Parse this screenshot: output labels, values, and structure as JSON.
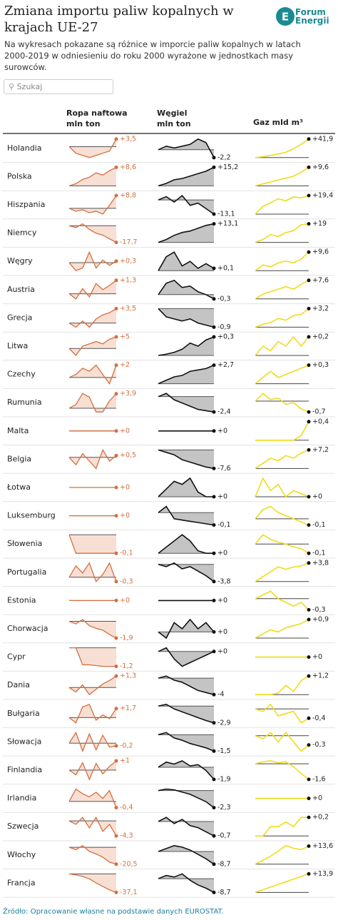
{
  "header": {
    "title": "Zmiana importu paliw kopalnych w krajach UE-27",
    "subtitle": "Na wykresach pokazane są różnice w imporcie paliw kopalnych w latach 2000-2019 w odniesieniu do roku 2000 wyrażone w jednostkach masy surowców.",
    "logo": [
      "Forum",
      "Energii"
    ],
    "search": "Szukaj"
  },
  "table": {
    "columns": [
      [
        "Ropa naftowa",
        "mln ton"
      ],
      [
        "Węgiel",
        "mln ton"
      ],
      [
        "Gaz mld m³"
      ]
    ],
    "rows": [
      {
        "country": "Holandia",
        "oil": {
          "values": [
            0,
            -3,
            -4,
            -5,
            -4,
            -3,
            -2,
            3.5
          ],
          "label": "+3,5"
        },
        "coal": {
          "values": [
            0,
            1,
            0.5,
            1,
            1.5,
            3,
            2,
            -2.2
          ],
          "label": "-2,2"
        },
        "gas": {
          "values": [
            0,
            2,
            5,
            8,
            12,
            20,
            30,
            41.9
          ],
          "label": "+41,9"
        }
      },
      {
        "country": "Polska",
        "oil": {
          "values": [
            0,
            1,
            3,
            4,
            6,
            5,
            7,
            8.6
          ],
          "label": "+8,6"
        },
        "coal": {
          "values": [
            0,
            2,
            5,
            6,
            8,
            10,
            12,
            15.2
          ],
          "label": "+15,2"
        },
        "gas": {
          "values": [
            0,
            1,
            2,
            3,
            4,
            5,
            7,
            9.6
          ],
          "label": "+9,6"
        }
      },
      {
        "country": "Hiszpania",
        "oil": {
          "values": [
            0,
            -2,
            -1,
            -3,
            -2,
            -4,
            2,
            8.8
          ],
          "label": "+8,8"
        },
        "coal": {
          "values": [
            0,
            3,
            -2,
            4,
            -5,
            -3,
            -8,
            -13.1
          ],
          "label": "-13,1"
        },
        "gas": {
          "values": [
            0,
            8,
            12,
            16,
            14,
            18,
            17,
            19.4
          ],
          "label": "+19,4"
        }
      },
      {
        "country": "Niemcy",
        "oil": {
          "values": [
            0,
            -2,
            2,
            -4,
            -8,
            -10,
            -14,
            -17.7
          ],
          "label": "-17,7"
        },
        "coal": {
          "values": [
            0,
            2,
            5,
            7,
            8,
            10,
            12,
            13.1
          ],
          "label": "+13,1"
        },
        "gas": {
          "values": [
            0,
            3,
            8,
            6,
            10,
            12,
            18,
            19
          ],
          "label": "+19"
        }
      },
      {
        "country": "Węgry",
        "oil": {
          "values": [
            0,
            -1.5,
            -1,
            2,
            -1,
            0.5,
            -0.5,
            0.3
          ],
          "label": "+0,3"
        },
        "coal": {
          "values": [
            0,
            0.6,
            0.8,
            0.2,
            0.4,
            0.1,
            0.3,
            0.1
          ],
          "label": "+0,1"
        },
        "gas": {
          "values": [
            0,
            3,
            2,
            4,
            5,
            4,
            6,
            9.6
          ],
          "label": "+9,6"
        }
      },
      {
        "country": "Austria",
        "oil": {
          "values": [
            0,
            -0.5,
            0.5,
            -0.3,
            1,
            0.4,
            0.8,
            1.3
          ],
          "label": "+1,3"
        },
        "coal": {
          "values": [
            0,
            0.8,
            1,
            0.5,
            0.6,
            0.2,
            0,
            -0.3
          ],
          "label": "-0,3"
        },
        "gas": {
          "values": [
            0,
            2,
            3,
            4,
            5,
            4,
            6,
            7.6
          ],
          "label": "+7,6"
        }
      },
      {
        "country": "Grecja",
        "oil": {
          "values": [
            0,
            -1,
            0.5,
            -1,
            1,
            2,
            2.5,
            3.5
          ],
          "label": "+3,5"
        },
        "coal": {
          "values": [
            0,
            -0.4,
            -0.5,
            -0.6,
            -0.5,
            -0.7,
            -0.8,
            -0.9
          ],
          "label": "-0,9"
        },
        "gas": {
          "values": [
            0,
            0.5,
            0.8,
            1.5,
            1.2,
            2,
            2.2,
            3.2
          ],
          "label": "+3,2"
        }
      },
      {
        "country": "Litwa",
        "oil": {
          "values": [
            0,
            -3,
            1,
            2,
            3,
            2,
            4,
            5
          ],
          "label": "+5"
        },
        "coal": {
          "values": [
            0,
            0.02,
            0.05,
            0.1,
            0.2,
            0.15,
            0.25,
            0.3
          ],
          "label": "+0,3"
        },
        "gas": {
          "values": [
            0,
            0.1,
            0.05,
            0.15,
            0.1,
            0.2,
            0.1,
            0.2
          ],
          "label": "+0,2"
        }
      },
      {
        "country": "Czechy",
        "oil": {
          "values": [
            0,
            0.5,
            1.5,
            1,
            2,
            0.5,
            -1,
            2
          ],
          "label": "+2"
        },
        "coal": {
          "values": [
            0,
            0.5,
            1,
            1.2,
            1.8,
            2,
            2.2,
            2.7
          ],
          "label": "+2,7"
        },
        "gas": {
          "values": [
            0,
            0.1,
            0.2,
            0.1,
            0.15,
            0.2,
            0.25,
            0.3
          ],
          "label": "+0,3"
        }
      },
      {
        "country": "Rumunia",
        "oil": {
          "values": [
            0,
            1,
            4,
            3,
            -1,
            -1,
            2,
            3.9
          ],
          "label": "+3,9"
        },
        "coal": {
          "values": [
            0,
            0.5,
            -0.5,
            -1,
            -1.5,
            -2,
            -2.2,
            -2.4
          ],
          "label": "-2,4"
        },
        "gas": {
          "values": [
            0,
            0.5,
            0.1,
            0.2,
            -0.2,
            -0.1,
            -0.5,
            -0.7
          ],
          "label": "-0,7"
        }
      },
      {
        "country": "Malta",
        "oil": {
          "values": [
            0,
            0,
            0,
            0,
            0,
            0,
            0,
            0
          ],
          "label": "+0"
        },
        "coal": {
          "values": [
            0,
            0,
            0,
            0,
            0,
            0,
            0,
            0
          ],
          "label": "+0"
        },
        "gas": {
          "values": [
            0,
            0,
            0,
            0,
            0,
            0,
            0.1,
            0.4
          ],
          "label": "+0,4"
        }
      },
      {
        "country": "Belgia",
        "oil": {
          "values": [
            0,
            -2,
            1,
            -1,
            -3,
            2,
            -1,
            0.5
          ],
          "label": "+0,5"
        },
        "coal": {
          "values": [
            0,
            -1,
            -2,
            -4,
            -5,
            -6,
            -7,
            -7.6
          ],
          "label": "-7,6"
        },
        "gas": {
          "values": [
            0,
            2,
            4,
            3,
            5,
            4,
            6,
            7.2
          ],
          "label": "+7,2"
        }
      },
      {
        "country": "Łotwa",
        "oil": {
          "values": [
            0,
            0,
            0,
            0,
            0,
            0,
            0,
            0
          ],
          "label": "+0"
        },
        "coal": {
          "values": [
            0,
            0.05,
            0.1,
            0.08,
            0.12,
            0.03,
            0,
            0
          ],
          "label": "+0"
        },
        "gas": {
          "values": [
            0,
            0.3,
            0.1,
            0.2,
            0,
            0.1,
            0.05,
            0
          ],
          "label": "+0"
        }
      },
      {
        "country": "Luksemburg",
        "oil": {
          "values": [
            0,
            0,
            0,
            0,
            0,
            0,
            0,
            0
          ],
          "label": "+0"
        },
        "coal": {
          "values": [
            0,
            0.05,
            -0.05,
            -0.06,
            -0.07,
            -0.08,
            -0.09,
            -0.1
          ],
          "label": "-0,1"
        },
        "gas": {
          "values": [
            0,
            0.15,
            0.2,
            0.1,
            0.05,
            0,
            -0.05,
            -0.1
          ],
          "label": "-0,1"
        }
      },
      {
        "country": "Słowenia",
        "oil": {
          "values": [
            0,
            -0.1,
            -0.1,
            -0.1,
            -0.1,
            -0.1,
            -0.1,
            -0.1
          ],
          "label": "-0,1"
        },
        "coal": {
          "values": [
            0,
            0.05,
            0.1,
            0.15,
            0.1,
            0.02,
            0,
            0
          ],
          "label": "+0"
        },
        "gas": {
          "values": [
            0,
            0.1,
            0.05,
            0.02,
            0,
            -0.03,
            -0.05,
            -0.1
          ],
          "label": "-0,1"
        }
      },
      {
        "country": "Portugalia",
        "oil": {
          "values": [
            0,
            0.8,
            0.3,
            1,
            -0.3,
            0.2,
            1,
            -0.3
          ],
          "label": "-0,3"
        },
        "coal": {
          "values": [
            0,
            -0.5,
            0.3,
            -1,
            -0.5,
            -1.5,
            -2.5,
            -3.8
          ],
          "label": "-3,8"
        },
        "gas": {
          "values": [
            0,
            1,
            2,
            3,
            2.5,
            3,
            3.2,
            3.8
          ],
          "label": "+3,8"
        }
      },
      {
        "country": "Estonia",
        "oil": {
          "values": [
            0,
            0,
            0,
            0,
            0,
            0,
            0,
            0
          ],
          "label": "+0"
        },
        "coal": {
          "values": [
            0,
            0,
            0,
            0,
            0,
            0,
            0,
            0
          ],
          "label": "+0"
        },
        "gas": {
          "values": [
            0,
            0.1,
            0.2,
            0,
            -0.1,
            -0.2,
            -0.1,
            -0.3
          ],
          "label": "-0,3"
        }
      },
      {
        "country": "Chorwacja",
        "oil": {
          "values": [
            0,
            -0.3,
            0.2,
            -0.5,
            -0.8,
            -1,
            -1.5,
            -1.9
          ],
          "label": "-1,9"
        },
        "coal": {
          "values": [
            0,
            -0.2,
            0.3,
            0.1,
            0.4,
            0.1,
            0.3,
            0
          ],
          "label": "+0"
        },
        "gas": {
          "values": [
            0,
            0.2,
            0.4,
            0.3,
            0.5,
            0.6,
            0.7,
            0.9
          ],
          "label": "+0,9"
        }
      },
      {
        "country": "Cypr",
        "oil": {
          "values": [
            0,
            0,
            -1.1,
            -1.1,
            -1.15,
            -1.2,
            -1.2,
            -1.2
          ],
          "label": "-1,2"
        },
        "coal": {
          "values": [
            0,
            0.1,
            -0.2,
            -0.4,
            -0.3,
            -0.2,
            -0.1,
            0
          ],
          "label": "+0"
        },
        "gas": {
          "values": [
            0,
            0,
            0,
            0,
            0,
            0,
            0,
            0
          ],
          "label": "+0"
        }
      },
      {
        "country": "Dania",
        "oil": {
          "values": [
            0,
            -0.5,
            0.3,
            -0.8,
            -0.2,
            0.4,
            0.8,
            1.3
          ],
          "label": "+1,3"
        },
        "coal": {
          "values": [
            0,
            0.5,
            -0.5,
            -1,
            -2,
            -3,
            -3.5,
            -4
          ],
          "label": "-4"
        },
        "gas": {
          "values": [
            0,
            0,
            0,
            0.1,
            0.6,
            0.2,
            0.9,
            1.2
          ],
          "label": "+1,2"
        }
      },
      {
        "country": "Bułgaria",
        "oil": {
          "values": [
            0,
            -1,
            2,
            2.5,
            -0.5,
            0.5,
            -0.2,
            1.7
          ],
          "label": "+1,7"
        },
        "coal": {
          "values": [
            0,
            0.3,
            -0.5,
            -1,
            -1.5,
            -2,
            -2.5,
            -2.9
          ],
          "label": "-2,9"
        },
        "gas": {
          "values": [
            0,
            -0.1,
            0.2,
            -0.3,
            -0.2,
            -0.1,
            -0.6,
            -0.4
          ],
          "label": "-0,4"
        }
      },
      {
        "country": "Słowacja",
        "oil": {
          "values": [
            0,
            0.8,
            -0.6,
            0.7,
            -0.5,
            0.6,
            -0.3,
            -0.2
          ],
          "label": "-0,2"
        },
        "coal": {
          "values": [
            0,
            0.2,
            -0.3,
            -0.5,
            -0.8,
            -1,
            -1.2,
            -1.5
          ],
          "label": "-1,5"
        },
        "gas": {
          "values": [
            0,
            -0.1,
            0.1,
            -0.2,
            0.1,
            -0.2,
            -0.5,
            -0.3
          ],
          "label": "-0,3"
        }
      },
      {
        "country": "Finlandia",
        "oil": {
          "values": [
            0,
            -0.5,
            0.8,
            -1,
            0.7,
            -0.4,
            0.4,
            1
          ],
          "label": "+1"
        },
        "coal": {
          "values": [
            0,
            0.8,
            0.5,
            1,
            0.2,
            0.4,
            -0.5,
            -1.9
          ],
          "label": "-1,9"
        },
        "gas": {
          "values": [
            0,
            0.2,
            0.3,
            0.1,
            0.2,
            -0.3,
            -1,
            -1.6
          ],
          "label": "-1,6"
        }
      },
      {
        "country": "Irlandia",
        "oil": {
          "values": [
            0,
            0.8,
            0.5,
            0.3,
            0.6,
            0.2,
            0.7,
            -0.4
          ],
          "label": "-0,4"
        },
        "coal": {
          "values": [
            0,
            0.2,
            0.1,
            -0.2,
            -0.5,
            -1,
            -1.5,
            -2.3
          ],
          "label": "-2,3"
        },
        "gas": {
          "values": [
            0,
            0,
            0,
            0,
            0,
            0,
            0,
            0
          ],
          "label": "+0"
        }
      },
      {
        "country": "Szwecja",
        "oil": {
          "values": [
            0,
            -1,
            1,
            -2,
            1,
            -3,
            -1,
            -4.3
          ],
          "label": "-4,3"
        },
        "coal": {
          "values": [
            0,
            0.2,
            -0.1,
            0.1,
            -0.2,
            -0.3,
            -0.5,
            -0.7
          ],
          "label": "-0,7"
        },
        "gas": {
          "values": [
            0,
            0,
            0.1,
            0.1,
            0.15,
            0.1,
            0.2,
            0.2
          ],
          "label": "+0,2"
        }
      },
      {
        "country": "Włochy",
        "oil": {
          "values": [
            0,
            -3,
            2,
            -5,
            -8,
            -12,
            -18,
            -20.5
          ],
          "label": "-20,5"
        },
        "coal": {
          "values": [
            0,
            2,
            4,
            3,
            1,
            -2,
            -5,
            -8.7
          ],
          "label": "-8,7"
        },
        "gas": {
          "values": [
            0,
            3,
            6,
            10,
            14,
            12,
            11,
            13.6
          ],
          "label": "+13,6"
        }
      },
      {
        "country": "Francja",
        "oil": {
          "values": [
            0,
            -2,
            -5,
            -10,
            -18,
            -25,
            -32,
            -37.1
          ],
          "label": "-37,1"
        },
        "coal": {
          "values": [
            0,
            2,
            1,
            3,
            -1,
            -4,
            -6,
            -8.7
          ],
          "label": "-8,7"
        },
        "gas": {
          "values": [
            0,
            2,
            4,
            6,
            8,
            10,
            12,
            13.9
          ],
          "label": "+13,9"
        }
      }
    ]
  },
  "footer": {
    "source": "Źródło: Opracowanie własne na podstawie danych EUROSTAT."
  }
}
